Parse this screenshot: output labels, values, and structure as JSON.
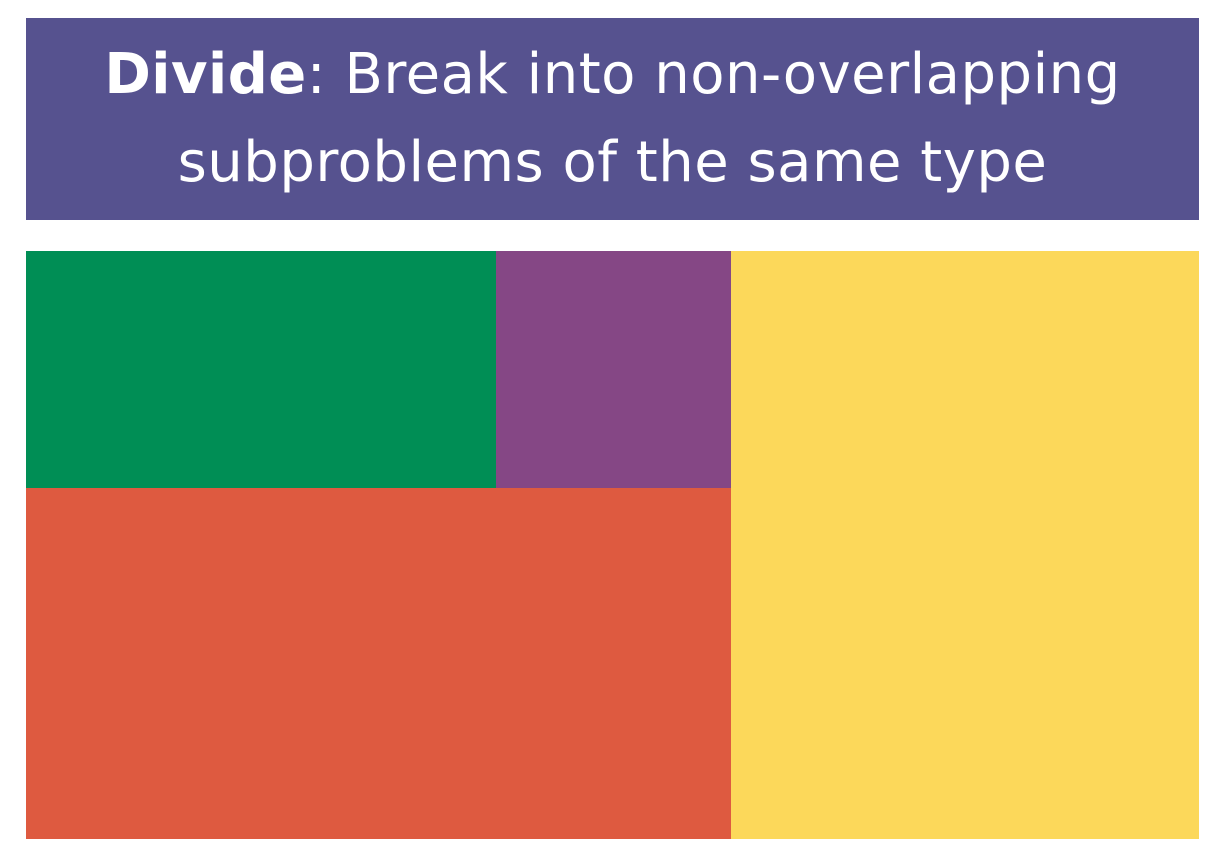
{
  "colors": {
    "banner_bg": "#56528f",
    "green": "#008e55",
    "purple": "#854785",
    "red": "#de5a40",
    "yellow": "#fcd85a"
  },
  "banner": {
    "keyword": "Divide",
    "separator": ":",
    "line1_rest": "Break into non-overlapping",
    "line2": "subproblems of the same type"
  }
}
